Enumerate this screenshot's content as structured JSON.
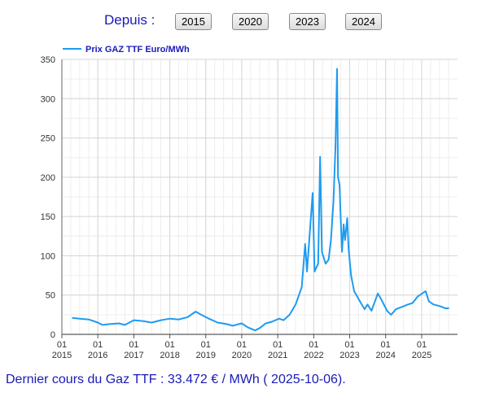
{
  "controls": {
    "depuis_label": "Depuis :",
    "buttons": [
      "2015",
      "2020",
      "2023",
      "2024"
    ]
  },
  "footer": {
    "text": "Dernier cours du Gaz TTF : 33.472 € / MWh ( 2025-10-06)."
  },
  "colors": {
    "line": "#1e9bf0",
    "text": "#1a1ab8",
    "grid": "#d6d6d6"
  },
  "chart_data": {
    "type": "line",
    "title": "",
    "xlabel": "",
    "ylabel": "",
    "ylim": [
      0,
      350
    ],
    "yticks": [
      0,
      50,
      100,
      150,
      200,
      250,
      300,
      350
    ],
    "xlim": [
      "2015-01-01",
      "2025-12-31"
    ],
    "xticks": [
      {
        "date": "2015-01-01",
        "top": "01",
        "bottom": "2015"
      },
      {
        "date": "2016-01-01",
        "top": "01",
        "bottom": "2016"
      },
      {
        "date": "2017-01-01",
        "top": "01",
        "bottom": "2017"
      },
      {
        "date": "2018-01-01",
        "top": "01",
        "bottom": "2018"
      },
      {
        "date": "2019-01-01",
        "top": "01",
        "bottom": "2019"
      },
      {
        "date": "2020-01-01",
        "top": "01",
        "bottom": "2020"
      },
      {
        "date": "2021-01-01",
        "top": "01",
        "bottom": "2021"
      },
      {
        "date": "2022-01-01",
        "top": "01",
        "bottom": "2022"
      },
      {
        "date": "2023-01-01",
        "top": "01",
        "bottom": "2023"
      },
      {
        "date": "2024-01-01",
        "top": "01",
        "bottom": "2024"
      },
      {
        "date": "2025-01-01",
        "top": "01",
        "bottom": "2025"
      }
    ],
    "grid": true,
    "legend_position": "top-left",
    "series": [
      {
        "name": "Prix GAZ TTF Euro/MWh",
        "color": "#1e9bf0",
        "x": [
          "2015-04-15",
          "2015-07-01",
          "2015-10-01",
          "2016-01-01",
          "2016-02-15",
          "2016-05-01",
          "2016-08-01",
          "2016-10-01",
          "2017-01-01",
          "2017-04-01",
          "2017-07-01",
          "2017-10-01",
          "2018-01-01",
          "2018-04-01",
          "2018-07-01",
          "2018-09-20",
          "2018-11-15",
          "2019-02-01",
          "2019-05-01",
          "2019-08-01",
          "2019-10-01",
          "2020-01-01",
          "2020-03-01",
          "2020-05-15",
          "2020-07-01",
          "2020-09-01",
          "2020-11-01",
          "2021-01-15",
          "2021-03-01",
          "2021-05-01",
          "2021-07-01",
          "2021-09-01",
          "2021-10-06",
          "2021-10-25",
          "2021-12-21",
          "2022-01-10",
          "2022-02-15",
          "2022-03-07",
          "2022-03-25",
          "2022-05-01",
          "2022-06-01",
          "2022-06-25",
          "2022-07-20",
          "2022-08-10",
          "2022-08-26",
          "2022-09-05",
          "2022-09-20",
          "2022-10-01",
          "2022-10-15",
          "2022-11-01",
          "2022-11-15",
          "2022-12-07",
          "2022-12-20",
          "2023-01-15",
          "2023-02-15",
          "2023-04-01",
          "2023-06-01",
          "2023-07-01",
          "2023-08-10",
          "2023-10-13",
          "2023-11-15",
          "2024-01-15",
          "2024-02-25",
          "2024-04-15",
          "2024-06-15",
          "2024-08-15",
          "2024-10-01",
          "2024-11-20",
          "2025-02-10",
          "2025-03-15",
          "2025-05-01",
          "2025-07-01",
          "2025-09-01",
          "2025-10-06"
        ],
        "y": [
          21,
          20,
          19,
          15,
          12,
          13,
          14,
          12,
          18,
          17,
          15,
          18,
          20,
          19,
          22,
          29,
          25,
          20,
          15,
          13,
          11,
          14,
          9,
          5,
          8,
          14,
          16,
          20,
          18,
          25,
          38,
          60,
          115,
          80,
          180,
          80,
          90,
          226,
          105,
          90,
          95,
          120,
          170,
          240,
          338,
          200,
          190,
          150,
          105,
          140,
          120,
          148,
          110,
          75,
          55,
          45,
          32,
          38,
          30,
          52,
          45,
          30,
          25,
          32,
          35,
          38,
          40,
          48,
          55,
          42,
          38,
          36,
          33,
          33.472
        ]
      }
    ]
  }
}
